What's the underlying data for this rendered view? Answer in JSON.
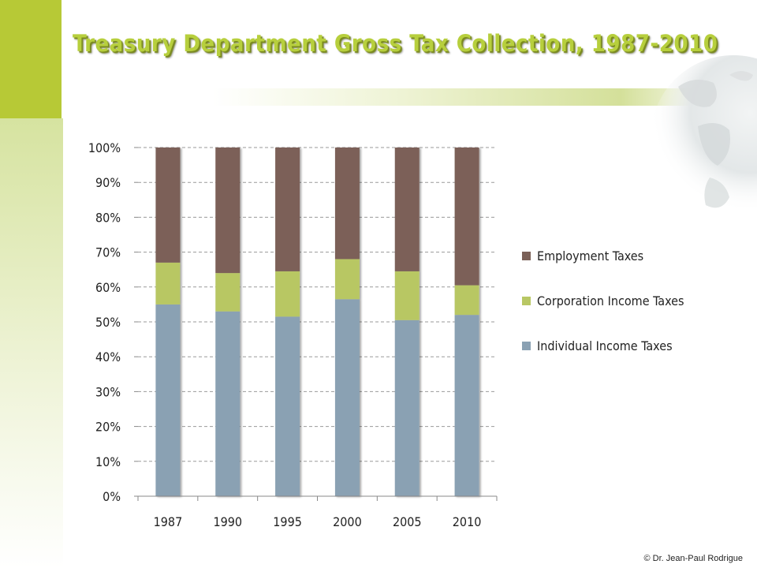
{
  "title": "Treasury Department Gross Tax Collection, 1987-2010",
  "copyright": "© Dr. Jean-Paul Rodrigue",
  "colors": {
    "employment": "#7b6158",
    "corporation": "#b8c764",
    "individual": "#8aa1b3",
    "accent": "#b7cf3d"
  },
  "chart_data": {
    "type": "bar",
    "stacked": true,
    "percent": true,
    "categories": [
      "1987",
      "1990",
      "1995",
      "2000",
      "2005",
      "2010"
    ],
    "series": [
      {
        "name": "Individual Income Taxes",
        "values": [
          55,
          53,
          51.5,
          56.5,
          50.5,
          52
        ]
      },
      {
        "name": "Corporation Income Taxes",
        "values": [
          12,
          11,
          13,
          11.5,
          14,
          8.5
        ]
      },
      {
        "name": "Employment Taxes",
        "values": [
          33,
          36,
          35.5,
          32,
          35.5,
          39.5
        ]
      }
    ],
    "y_ticks": [
      "0%",
      "10%",
      "20%",
      "30%",
      "40%",
      "50%",
      "60%",
      "70%",
      "80%",
      "90%",
      "100%"
    ],
    "ylim": [
      0,
      100
    ],
    "grid": true,
    "legend_order": [
      "Employment Taxes",
      "Corporation Income Taxes",
      "Individual Income Taxes"
    ],
    "legend_position": "right"
  }
}
